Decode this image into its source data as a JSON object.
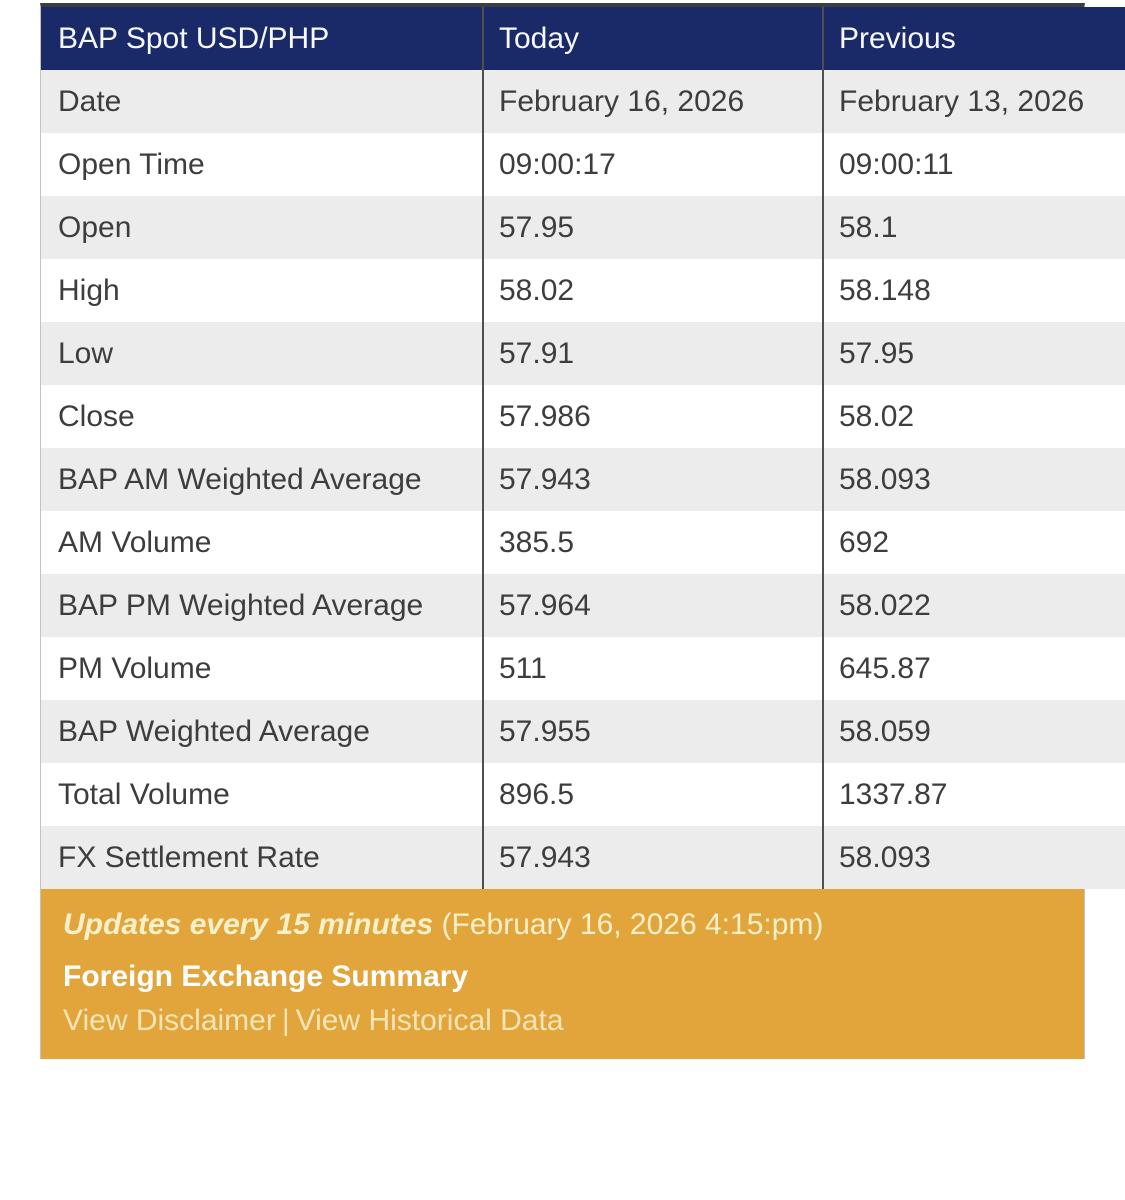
{
  "colors": {
    "header_bg": "#1a2a68",
    "header_text": "#f8f9fc",
    "row_alt_bg": "#ececec",
    "row_bg": "#ffffff",
    "body_text": "#3d3d3d",
    "column_divider": "#4f4f4f",
    "top_border": "#3d3d3d",
    "footer_bg": "#e1a53c",
    "footer_text": "#f8f0c8",
    "footer_title": "#ffffff",
    "footer_link": "#f3e5b5"
  },
  "table": {
    "columns": [
      {
        "label": "BAP Spot USD/PHP"
      },
      {
        "label": "Today"
      },
      {
        "label": "Previous"
      }
    ],
    "rows": [
      {
        "label": "Date",
        "today": "February 16, 2026",
        "previous": "February 13, 2026"
      },
      {
        "label": "Open Time",
        "today": "09:00:17",
        "previous": "09:00:11"
      },
      {
        "label": "Open",
        "today": "57.95",
        "previous": "58.1"
      },
      {
        "label": "High",
        "today": "58.02",
        "previous": "58.148"
      },
      {
        "label": "Low",
        "today": "57.91",
        "previous": "57.95"
      },
      {
        "label": "Close",
        "today": "57.986",
        "previous": "58.02"
      },
      {
        "label": "BAP AM Weighted Average",
        "today": "57.943",
        "previous": "58.093"
      },
      {
        "label": "AM Volume",
        "today": "385.5",
        "previous": "692"
      },
      {
        "label": "BAP PM Weighted Average",
        "today": "57.964",
        "previous": "58.022"
      },
      {
        "label": "PM Volume",
        "today": "511",
        "previous": "645.87"
      },
      {
        "label": "BAP Weighted Average",
        "today": "57.955",
        "previous": "58.059"
      },
      {
        "label": "Total Volume",
        "today": "896.5",
        "previous": "1337.87"
      },
      {
        "label": "FX Settlement Rate",
        "today": "57.943",
        "previous": "58.093"
      }
    ]
  },
  "footer": {
    "updates_note": "Updates every 15 minutes",
    "updated_timestamp": "(February 16, 2026 4:15:pm)",
    "summary_title": "Foreign Exchange Summary",
    "disclaimer_link": "View Disclaimer",
    "link_separator": "|",
    "historical_link": "View Historical Data"
  }
}
